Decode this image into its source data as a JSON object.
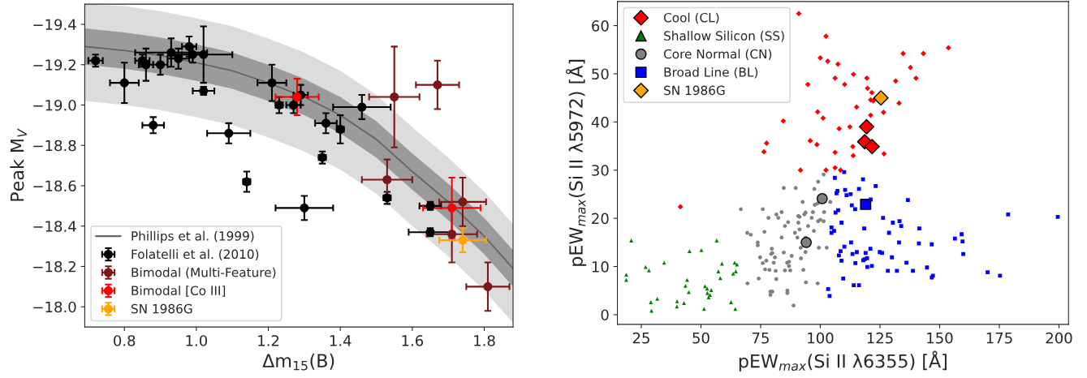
{
  "chart_data": [
    {
      "type": "scatter",
      "xlabel": "Δm$_{15}$(B)",
      "ylabel": "Peak M$_{V}$",
      "xlim": [
        0.69,
        1.88
      ],
      "ylim": [
        -17.9,
        -19.5
      ],
      "xticks": [
        0.8,
        {
          "value": 1.0,
          "label": "1.0"
        },
        1.2,
        1.4,
        1.6,
        1.8
      ],
      "yticks": [
        {
          "value": -19.4,
          "label": "−19.4"
        },
        {
          "value": -19.2,
          "label": "−19.2"
        },
        {
          "value": -19.0,
          "label": "−19.0"
        },
        {
          "value": -18.8,
          "label": "−18.8"
        },
        {
          "value": -18.6,
          "label": "−18.6"
        },
        {
          "value": -18.4,
          "label": "−18.4"
        },
        {
          "value": -18.2,
          "label": "−18.2"
        },
        {
          "value": -18.0,
          "label": "−18.0"
        }
      ],
      "legend": "lower left",
      "series": [
        {
          "type": "line",
          "color": "#c0c0c0",
          "x": [
            0.69,
            0.8,
            0.9,
            1.0,
            1.1,
            1.2,
            1.3,
            1.4,
            1.5,
            1.6,
            1.7,
            1.8,
            1.88
          ],
          "values": [
            -19.29,
            -19.27,
            -19.245,
            -19.21,
            -19.17,
            -19.11,
            -19.04,
            -18.95,
            -18.83,
            -18.67,
            -18.52,
            -18.35,
            -18.19
          ],
          "lower": [
            -19.5,
            -19.49,
            -19.465,
            -19.43,
            -19.39,
            -19.33,
            -19.26,
            -19.17,
            -19.05,
            -18.89,
            -18.74,
            -18.57,
            -18.41
          ],
          "upper": [
            -19.02,
            -19.0,
            -18.975,
            -18.94,
            -18.9,
            -18.84,
            -18.77,
            -18.68,
            -18.56,
            -18.4,
            -18.25,
            -18.08,
            -17.92
          ]
        },
        {
          "type": "line",
          "name": "Phillips et al. (1999)",
          "color": "#666666",
          "x": [
            0.69,
            0.8,
            0.9,
            1.0,
            1.1,
            1.2,
            1.3,
            1.4,
            1.5,
            1.6,
            1.7,
            1.8,
            1.88
          ],
          "values": [
            -19.29,
            -19.27,
            -19.245,
            -19.21,
            -19.17,
            -19.11,
            -19.04,
            -18.95,
            -18.83,
            -18.67,
            -18.52,
            -18.35,
            -18.19
          ],
          "lower": [
            -19.38,
            -19.36,
            -19.335,
            -19.3,
            -19.26,
            -19.2,
            -19.13,
            -19.04,
            -18.92,
            -18.76,
            -18.61,
            -18.44,
            -18.28
          ],
          "upper": [
            -19.2,
            -19.18,
            -19.155,
            -19.12,
            -19.08,
            -19.02,
            -18.95,
            -18.86,
            -18.74,
            -18.58,
            -18.43,
            -18.26,
            -18.1
          ]
        },
        {
          "name": "Folatelli et al. (2010)",
          "color": "#000000",
          "marker": "circle",
          "x": [
            0.72,
            0.8,
            0.85,
            0.86,
            0.9,
            0.88,
            0.93,
            0.95,
            0.98,
            0.99,
            1.02,
            1.02,
            1.09,
            1.14,
            1.21,
            1.23,
            1.27,
            1.29,
            1.3,
            1.36,
            1.35,
            1.4,
            1.46,
            1.53,
            1.65,
            1.65
          ],
          "values": [
            -19.22,
            -19.11,
            -19.22,
            -19.2,
            -19.2,
            -18.9,
            -19.26,
            -19.23,
            -19.29,
            -19.25,
            -19.25,
            -19.07,
            -18.86,
            -18.62,
            -19.11,
            -19.0,
            -19.0,
            -19.05,
            -18.49,
            -18.91,
            -18.74,
            -18.88,
            -18.99,
            -18.54,
            -18.5,
            -18.37
          ],
          "xerrors": [
            0.02,
            0.04,
            0.02,
            0.02,
            0.02,
            0.03,
            0.1,
            0.03,
            0.02,
            0.03,
            0.08,
            0.03,
            0.06,
            0.01,
            0.04,
            0.01,
            0.02,
            0.02,
            0.08,
            0.03,
            0.01,
            0.01,
            0.08,
            0.01,
            0.03,
            0.06
          ],
          "errors": [
            0.03,
            0.1,
            0.03,
            0.08,
            0.05,
            0.04,
            0.07,
            0.05,
            0.05,
            0.04,
            0.14,
            0.02,
            0.05,
            0.05,
            0.09,
            0.04,
            0.04,
            0.05,
            0.06,
            0.05,
            0.03,
            0.07,
            0.06,
            0.03,
            0.02,
            0.02
          ]
        },
        {
          "name": "Bimodal (Multi-Feature)",
          "color": "#7b1717",
          "marker": "circle",
          "x": [
            1.55,
            1.67,
            1.53,
            1.74,
            1.71,
            1.81
          ],
          "values": [
            -19.04,
            -19.1,
            -18.63,
            -18.52,
            -18.36,
            -18.1
          ],
          "xerrors": [
            0.07,
            0.06,
            0.07,
            0.065,
            0.07,
            0.06
          ],
          "errors": [
            0.25,
            0.12,
            0.1,
            0.12,
            0.14,
            0.12
          ]
        },
        {
          "name": "Bimodal [Co III]",
          "color": "#ff0000",
          "marker": "circle",
          "x": [
            1.28,
            1.71
          ],
          "values": [
            -19.04,
            -18.49
          ],
          "xerrors": [
            0.06,
            0.08
          ],
          "errors": [
            0.09,
            0.15
          ]
        },
        {
          "name": "SN 1986G",
          "color": "#ffa500",
          "marker": "circle",
          "x": [
            1.74
          ],
          "values": [
            -18.33
          ],
          "xerrors": [
            0.065
          ],
          "errors": [
            0.06
          ]
        }
      ]
    },
    {
      "type": "scatter",
      "xlabel": "pEW$_{max}$(Si II λ6355) [Å]",
      "ylabel": "pEW$_{max}$(Si II λ5972) [Å]",
      "xlim": [
        15,
        204
      ],
      "ylim": [
        -2,
        65
      ],
      "xticks": [
        25,
        50,
        75,
        100,
        125,
        150,
        175,
        200
      ],
      "yticks": [
        0,
        10,
        20,
        30,
        40,
        50,
        60
      ],
      "legend": "upper left",
      "series": [
        {
          "color": "#ff0000",
          "marker": "diamond",
          "x": [
            91.0,
            102.4,
            100.0,
            103.1,
            107.4,
            94.8,
            106.2,
            110.2,
            113.9,
            119.5,
            119.8,
            121.6,
            121.1,
            122.2,
            115.2,
            131.6,
            133.0,
            134.7,
            126.5,
            121.1,
            98.9,
            101.2,
            84.5,
            112.4,
            107.9,
            95.8,
            98.6,
            113.6,
            113.8,
            106.2,
            126.7,
            76.4,
            77.5,
            91.7,
            102.4,
            106.2,
            108.5,
            137.8,
            143.2,
            153.7,
            140.1,
            41.4
          ],
          "values": [
            62.5,
            57.8,
            53.3,
            52.6,
            52.0,
            47.8,
            49.1,
            47.8,
            49.9,
            49.1,
            47.0,
            46.1,
            44.6,
            44.4,
            43.1,
            48.5,
            43.9,
            54.2,
            42.0,
            41.4,
            42.1,
            40.8,
            40.2,
            39.0,
            38.6,
            36.1,
            35.3,
            34.9,
            33.0,
            33.7,
            33.4,
            33.8,
            35.6,
            30.0,
            30.0,
            30.5,
            30.0,
            51.3,
            54.2,
            55.4,
            49.1,
            22.4
          ]
        },
        {
          "color": "#008000",
          "marker": "triangle",
          "x": [
            18.7,
            18.7,
            20.8,
            26.8,
            28.2,
            29.0,
            29.3,
            31.7,
            34.6,
            40.0,
            39.9,
            42.9,
            44.2,
            43.5,
            44.9,
            45.2,
            50.2,
            51.3,
            51.7,
            52.6,
            52.7,
            53.2,
            53.8,
            54.3,
            56.6,
            57.3,
            58.1,
            58.8,
            62.6,
            63.5,
            64.1,
            64.4,
            64.6,
            65.1
          ],
          "values": [
            8.3,
            7.2,
            15.4,
            9.9,
            9.2,
            2.6,
            0.8,
            3.3,
            10.8,
            2.8,
            1.7,
            2.4,
            7.2,
            6.0,
            4.7,
            13.2,
            13.4,
            1.2,
            5.9,
            5.4,
            4.5,
            3.6,
            4.1,
            5.1,
            15.4,
            9.0,
            7.6,
            10.6,
            2.6,
            8.5,
            10.8,
            1.2,
            9.0,
            10.4
          ]
        },
        {
          "color": "#808080",
          "marker": "circle",
          "x": [
            66.7,
            69.4,
            70.9,
            69.5,
            73.8,
            73.8,
            74.2,
            74.8,
            75.9,
            76.6,
            75.9,
            76.9,
            77.4,
            78.3,
            79.1,
            79.1,
            79.9,
            79.7,
            79.4,
            79.9,
            81.0,
            80.5,
            78.7,
            81.3,
            81.6,
            81.6,
            82.4,
            83.8,
            83.8,
            84.7,
            84.7,
            85.2,
            86.5,
            86.2,
            86.2,
            86.1,
            86.9,
            86.9,
            87.4,
            88.0,
            85.2,
            88.8,
            89.7,
            89.4,
            90.4,
            90.8,
            91.3,
            90.8,
            91.3,
            91.8,
            91.9,
            92.6,
            92.9,
            93.3,
            93.8,
            93.8,
            93.8,
            94.0,
            94.9,
            96.4,
            96.9,
            97.5,
            97.3,
            97.7,
            98.9,
            98.9,
            99.1,
            99.4,
            100.0,
            99.1,
            101.4,
            101.6,
            101.4,
            102.7,
            104.2
          ],
          "values": [
            21.9,
            17.0,
            16.6,
            6.5,
            15.0,
            14.4,
            7.5,
            11.9,
            21.9,
            17.2,
            10.7,
            9.4,
            11.2,
            20.1,
            4.1,
            4.8,
            4.8,
            13.7,
            12.6,
            12.8,
            11.9,
            10.8,
            9.3,
            9.1,
            7.4,
            20.8,
            20.1,
            21.3,
            16.0,
            12.9,
            26.3,
            18.4,
            19.2,
            5.0,
            4.5,
            10.8,
            11.0,
            10.1,
            9.2,
            12.2,
            9.2,
            1.9,
            26.3,
            17.0,
            16.0,
            20.5,
            20.3,
            19.1,
            17.7,
            13.9,
            11.7,
            23.4,
            9.3,
            20.8,
            21.2,
            16.0,
            13.0,
            6.7,
            18.4,
            20.1,
            21.3,
            26.1,
            17.4,
            22.8,
            23.1,
            6.5,
            19.4,
            13.9,
            19.7,
            27.6,
            19.4,
            21.3,
            29.1,
            13.9,
            23.4
          ]
        },
        {
          "color": "#0000ff",
          "marker": "square",
          "x": [
            106.1,
            110.0,
            106.8,
            107.2,
            110.4,
            111.0,
            112.7,
            116.2,
            117.9,
            123.2,
            121.1,
            113.2,
            114.6,
            107.5,
            106.4,
            108.9,
            104.7,
            105.8,
            104.7,
            118.4,
            126.3,
            130.4,
            133.2,
            133.9,
            136.7,
            141.5,
            156.4,
            159.2,
            159.6,
            159.9,
            178.7,
            199.5,
            128.8,
            133.0,
            141.3,
            146.7,
            136.1,
            130.0,
            124.9,
            125.9,
            121.0,
            119.0,
            118.6,
            119.6,
            118.0,
            121.6,
            119.7,
            112.9,
            110.1,
            108.5,
            107.8,
            113.5,
            115.3,
            114.7,
            108.9,
            109.6,
            128.3,
            132.1,
            138.8,
            144.7,
            146.7,
            147.2,
            170.1,
            175.3,
            103.3,
            103.9,
            114.0,
            116.2
          ],
          "values": [
            28.4,
            29.6,
            25.2,
            25.7,
            25.9,
            24.8,
            25.0,
            26.1,
            28.1,
            26.7,
            23.9,
            22.7,
            21.9,
            21.7,
            21.2,
            19.1,
            18.1,
            17.4,
            17.0,
            17.9,
            20.1,
            19.1,
            19.4,
            18.4,
            23.8,
            17.9,
            15.8,
            16.7,
            15.2,
            12.6,
            20.8,
            20.3,
            17.0,
            15.0,
            14.8,
            14.6,
            10.8,
            11.9,
            13.0,
            12.8,
            13.7,
            12.8,
            11.5,
            11.7,
            11.3,
            10.1,
            9.9,
            15.0,
            14.1,
            13.2,
            12.3,
            12.6,
            13.0,
            10.7,
            11.2,
            7.5,
            9.1,
            9.1,
            9.1,
            9.8,
            7.7,
            8.1,
            8.8,
            8.1,
            5.3,
            3.9,
            6.1,
            6.1
          ]
        },
        {
          "name": "Cool (CL)",
          "color": "#ff0000",
          "marker": "diamond",
          "x": [
            119.4,
            118.6,
            121.7
          ],
          "values": [
            39.0,
            35.9,
            34.9
          ]
        },
        {
          "name": "Shallow Silicon (SS)",
          "color": "#008000",
          "marker": "triangle"
        },
        {
          "name": "Core Normal (CN)",
          "color": "#808080",
          "marker": "circle",
          "x": [
            100.8,
            94.1
          ],
          "values": [
            24.1,
            15.0
          ]
        },
        {
          "name": "Broad Line (BL)",
          "color": "#0000ff",
          "marker": "square",
          "x": [
            119.0
          ],
          "values": [
            22.9
          ]
        },
        {
          "name": "SN 1986G",
          "color": "#ffa500",
          "marker": "diamond",
          "x": [
            125.4
          ],
          "values": [
            45.0
          ]
        }
      ]
    }
  ]
}
